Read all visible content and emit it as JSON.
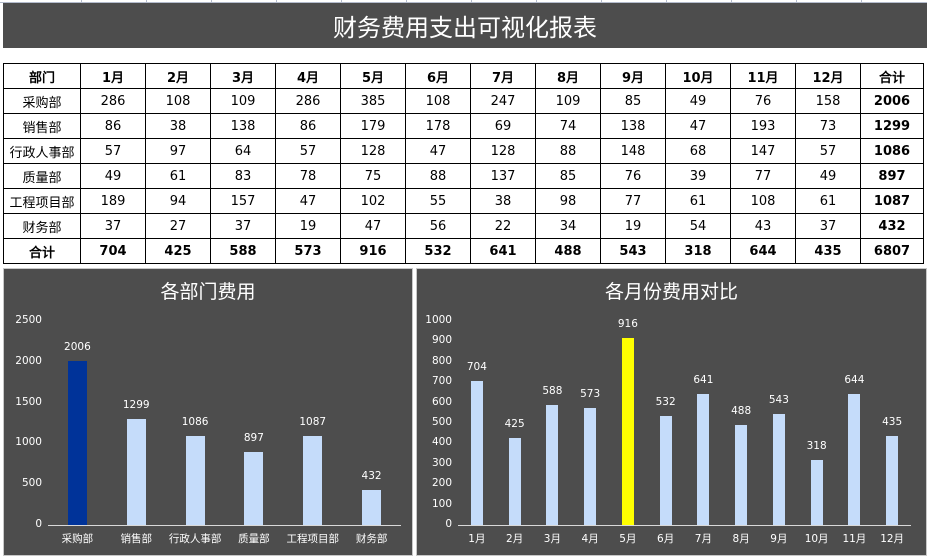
{
  "title": "财务费用支出可视化报表",
  "table": {
    "headers": [
      "部门",
      "1月",
      "2月",
      "3月",
      "4月",
      "5月",
      "6月",
      "7月",
      "8月",
      "9月",
      "10月",
      "11月",
      "12月",
      "合计"
    ],
    "rows": [
      [
        "采购部",
        "286",
        "108",
        "109",
        "286",
        "385",
        "108",
        "247",
        "109",
        "85",
        "49",
        "76",
        "158",
        "2006"
      ],
      [
        "销售部",
        "86",
        "38",
        "138",
        "86",
        "179",
        "178",
        "69",
        "74",
        "138",
        "47",
        "193",
        "73",
        "1299"
      ],
      [
        "行政人事部",
        "57",
        "97",
        "64",
        "57",
        "128",
        "47",
        "128",
        "88",
        "148",
        "68",
        "147",
        "57",
        "1086"
      ],
      [
        "质量部",
        "49",
        "61",
        "83",
        "78",
        "75",
        "88",
        "137",
        "85",
        "76",
        "39",
        "77",
        "49",
        "897"
      ],
      [
        "工程项目部",
        "189",
        "94",
        "157",
        "47",
        "102",
        "55",
        "38",
        "98",
        "77",
        "61",
        "108",
        "61",
        "1087"
      ],
      [
        "财务部",
        "37",
        "27",
        "37",
        "19",
        "47",
        "56",
        "22",
        "34",
        "19",
        "54",
        "43",
        "37",
        "432"
      ]
    ],
    "total_row": [
      "合计",
      "704",
      "425",
      "588",
      "573",
      "916",
      "532",
      "641",
      "488",
      "543",
      "318",
      "644",
      "435",
      "6807"
    ]
  },
  "chart_data": [
    {
      "type": "bar",
      "title": "各部门费用",
      "categories": [
        "采购部",
        "销售部",
        "行政人事部",
        "质量部",
        "工程项目部",
        "财务部"
      ],
      "values": [
        2006,
        1299,
        1086,
        897,
        1087,
        432
      ],
      "yticks": [
        "0",
        "500",
        "1000",
        "1500",
        "2000",
        "2500"
      ],
      "ylim": [
        0,
        2500
      ],
      "highlight_index": 0,
      "colors": {
        "default": "#c5dcfa",
        "highlight": "#003399",
        "background": "#4d4d4d"
      },
      "xlabel": "",
      "ylabel": "",
      "grid": false,
      "legend": "none"
    },
    {
      "type": "bar",
      "title": "各月份费用对比",
      "categories": [
        "1月",
        "2月",
        "3月",
        "4月",
        "5月",
        "6月",
        "7月",
        "8月",
        "9月",
        "10月",
        "11月",
        "12月"
      ],
      "values": [
        704,
        425,
        588,
        573,
        916,
        532,
        641,
        488,
        543,
        318,
        644,
        435
      ],
      "yticks": [
        "0",
        "100",
        "200",
        "300",
        "400",
        "500",
        "600",
        "700",
        "800",
        "900",
        "1000"
      ],
      "ylim": [
        0,
        1000
      ],
      "highlight_index": 4,
      "colors": {
        "default": "#c5dcfa",
        "highlight": "#ffff00",
        "background": "#4d4d4d"
      },
      "xlabel": "",
      "ylabel": "",
      "grid": false,
      "legend": "none"
    }
  ]
}
